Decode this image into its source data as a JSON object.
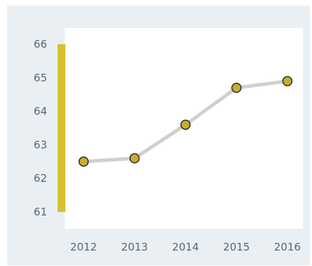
{
  "chart_data": {
    "type": "line",
    "title": "",
    "xlabel": "",
    "ylabel": "",
    "x": [
      "2012",
      "2013",
      "2014",
      "2015",
      "2016"
    ],
    "series": [
      {
        "values": [
          62.5,
          62.6,
          63.6,
          64.7,
          64.9
        ]
      }
    ],
    "ylim": [
      61,
      66
    ],
    "y_ticks": [
      61,
      62,
      63,
      64,
      65,
      66
    ],
    "y_tick_labels": [
      "61",
      "62",
      "63",
      "64",
      "65",
      "66"
    ],
    "x_tick_labels": [
      "2012",
      "2013",
      "2014",
      "2015",
      "2016"
    ],
    "y_range_bar": [
      61,
      66
    ],
    "grid": false,
    "legend": "none",
    "colors": {
      "background": "#eaeff3",
      "plot_area": "#ffffff",
      "line": "#d0d0d0",
      "marker_fill": "#c9ad2e",
      "marker_stroke": "#2a2a2a",
      "range_bar": "#d8bf2f",
      "tick_text": "#5b6670"
    }
  }
}
